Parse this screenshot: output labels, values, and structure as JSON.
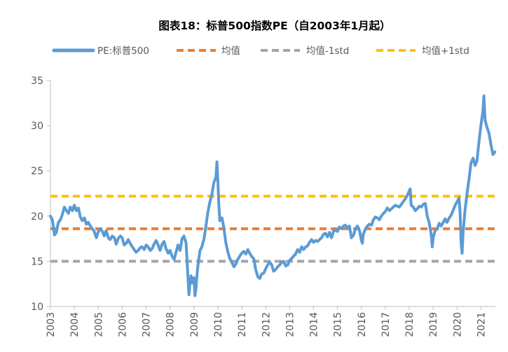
{
  "chart_data": {
    "type": "line",
    "title": "图表18：标普500指数PE（自2003年1月起）",
    "xlabel": "",
    "ylabel": "",
    "ylim": [
      10,
      35
    ],
    "xlim": [
      2003.0,
      2021.6
    ],
    "y_ticks": [
      10,
      15,
      20,
      25,
      30,
      35
    ],
    "x_ticks": [
      2003,
      2004,
      2005,
      2006,
      2007,
      2008,
      2009,
      2010,
      2011,
      2012,
      2013,
      2014,
      2015,
      2016,
      2017,
      2018,
      2019,
      2020,
      2021
    ],
    "grid": false,
    "legend_position": "top",
    "series": [
      {
        "name": "PE:标普500",
        "color": "#5b9bd5",
        "style": "solid",
        "points": [
          [
            2003.0,
            20.0
          ],
          [
            2003.08,
            19.6
          ],
          [
            2003.17,
            17.9
          ],
          [
            2003.25,
            18.2
          ],
          [
            2003.33,
            19.3
          ],
          [
            2003.42,
            19.6
          ],
          [
            2003.5,
            20.2
          ],
          [
            2003.58,
            21.0
          ],
          [
            2003.67,
            20.6
          ],
          [
            2003.75,
            20.3
          ],
          [
            2003.83,
            21.0
          ],
          [
            2003.92,
            20.6
          ],
          [
            2004.0,
            21.2
          ],
          [
            2004.08,
            20.6
          ],
          [
            2004.17,
            20.9
          ],
          [
            2004.25,
            19.9
          ],
          [
            2004.33,
            19.5
          ],
          [
            2004.42,
            19.8
          ],
          [
            2004.5,
            19.1
          ],
          [
            2004.58,
            19.3
          ],
          [
            2004.67,
            18.9
          ],
          [
            2004.75,
            18.6
          ],
          [
            2004.83,
            18.3
          ],
          [
            2004.92,
            17.6
          ],
          [
            2005.0,
            18.3
          ],
          [
            2005.08,
            18.6
          ],
          [
            2005.17,
            18.3
          ],
          [
            2005.25,
            17.8
          ],
          [
            2005.33,
            18.4
          ],
          [
            2005.42,
            17.6
          ],
          [
            2005.5,
            17.4
          ],
          [
            2005.58,
            17.8
          ],
          [
            2005.67,
            17.6
          ],
          [
            2005.75,
            16.9
          ],
          [
            2005.83,
            17.5
          ],
          [
            2005.92,
            17.8
          ],
          [
            2006.0,
            17.6
          ],
          [
            2006.08,
            16.8
          ],
          [
            2006.17,
            17.0
          ],
          [
            2006.25,
            17.4
          ],
          [
            2006.33,
            17.0
          ],
          [
            2006.42,
            16.6
          ],
          [
            2006.5,
            16.3
          ],
          [
            2006.58,
            16.0
          ],
          [
            2006.67,
            16.2
          ],
          [
            2006.75,
            16.5
          ],
          [
            2006.83,
            16.6
          ],
          [
            2006.92,
            16.3
          ],
          [
            2007.0,
            16.8
          ],
          [
            2007.08,
            16.6
          ],
          [
            2007.17,
            16.2
          ],
          [
            2007.25,
            16.4
          ],
          [
            2007.33,
            16.9
          ],
          [
            2007.42,
            17.3
          ],
          [
            2007.5,
            16.8
          ],
          [
            2007.58,
            16.2
          ],
          [
            2007.67,
            16.9
          ],
          [
            2007.75,
            17.2
          ],
          [
            2007.83,
            16.4
          ],
          [
            2007.92,
            15.9
          ],
          [
            2008.0,
            16.2
          ],
          [
            2008.08,
            15.6
          ],
          [
            2008.17,
            15.2
          ],
          [
            2008.25,
            16.0
          ],
          [
            2008.33,
            16.8
          ],
          [
            2008.42,
            16.2
          ],
          [
            2008.5,
            17.5
          ],
          [
            2008.58,
            17.8
          ],
          [
            2008.67,
            17.0
          ],
          [
            2008.75,
            13.2
          ],
          [
            2008.79,
            11.3
          ],
          [
            2008.83,
            12.5
          ],
          [
            2008.88,
            13.4
          ],
          [
            2008.92,
            12.6
          ],
          [
            2008.96,
            13.0
          ],
          [
            2009.0,
            13.2
          ],
          [
            2009.04,
            11.2
          ],
          [
            2009.08,
            11.9
          ],
          [
            2009.13,
            13.6
          ],
          [
            2009.17,
            14.6
          ],
          [
            2009.25,
            16.2
          ],
          [
            2009.33,
            16.6
          ],
          [
            2009.42,
            17.5
          ],
          [
            2009.5,
            18.9
          ],
          [
            2009.58,
            20.4
          ],
          [
            2009.67,
            21.6
          ],
          [
            2009.75,
            22.4
          ],
          [
            2009.83,
            23.7
          ],
          [
            2009.92,
            24.3
          ],
          [
            2009.96,
            26.0
          ],
          [
            2010.0,
            23.8
          ],
          [
            2010.04,
            21.3
          ],
          [
            2010.08,
            19.5
          ],
          [
            2010.17,
            19.8
          ],
          [
            2010.25,
            18.7
          ],
          [
            2010.33,
            17.1
          ],
          [
            2010.42,
            16.0
          ],
          [
            2010.5,
            15.3
          ],
          [
            2010.58,
            14.9
          ],
          [
            2010.67,
            14.4
          ],
          [
            2010.75,
            14.7
          ],
          [
            2010.83,
            15.2
          ],
          [
            2010.92,
            15.6
          ],
          [
            2011.0,
            15.9
          ],
          [
            2011.08,
            16.1
          ],
          [
            2011.17,
            15.8
          ],
          [
            2011.25,
            16.3
          ],
          [
            2011.33,
            15.9
          ],
          [
            2011.42,
            15.5
          ],
          [
            2011.5,
            15.3
          ],
          [
            2011.58,
            14.1
          ],
          [
            2011.67,
            13.3
          ],
          [
            2011.75,
            13.1
          ],
          [
            2011.83,
            13.6
          ],
          [
            2011.92,
            13.7
          ],
          [
            2012.0,
            14.2
          ],
          [
            2012.08,
            14.6
          ],
          [
            2012.17,
            14.9
          ],
          [
            2012.25,
            14.6
          ],
          [
            2012.33,
            13.9
          ],
          [
            2012.42,
            14.1
          ],
          [
            2012.5,
            14.4
          ],
          [
            2012.58,
            14.6
          ],
          [
            2012.67,
            14.9
          ],
          [
            2012.75,
            15.0
          ],
          [
            2012.83,
            14.5
          ],
          [
            2012.92,
            14.6
          ],
          [
            2013.0,
            15.1
          ],
          [
            2013.08,
            15.3
          ],
          [
            2013.17,
            15.6
          ],
          [
            2013.25,
            15.8
          ],
          [
            2013.33,
            16.3
          ],
          [
            2013.42,
            16.0
          ],
          [
            2013.5,
            16.6
          ],
          [
            2013.58,
            16.3
          ],
          [
            2013.67,
            16.6
          ],
          [
            2013.75,
            16.7
          ],
          [
            2013.83,
            17.1
          ],
          [
            2013.92,
            17.4
          ],
          [
            2014.0,
            17.1
          ],
          [
            2014.08,
            17.3
          ],
          [
            2014.17,
            17.2
          ],
          [
            2014.25,
            17.4
          ],
          [
            2014.33,
            17.6
          ],
          [
            2014.42,
            18.0
          ],
          [
            2014.5,
            18.1
          ],
          [
            2014.58,
            17.7
          ],
          [
            2014.67,
            18.2
          ],
          [
            2014.75,
            17.6
          ],
          [
            2014.83,
            18.3
          ],
          [
            2014.92,
            18.5
          ],
          [
            2015.0,
            18.3
          ],
          [
            2015.08,
            18.8
          ],
          [
            2015.17,
            18.6
          ],
          [
            2015.25,
            18.9
          ],
          [
            2015.33,
            19.0
          ],
          [
            2015.42,
            18.7
          ],
          [
            2015.5,
            18.9
          ],
          [
            2015.58,
            17.6
          ],
          [
            2015.67,
            17.9
          ],
          [
            2015.75,
            18.6
          ],
          [
            2015.83,
            18.9
          ],
          [
            2015.92,
            18.4
          ],
          [
            2016.0,
            17.3
          ],
          [
            2016.04,
            17.0
          ],
          [
            2016.08,
            18.0
          ],
          [
            2016.17,
            18.6
          ],
          [
            2016.25,
            18.9
          ],
          [
            2016.33,
            19.1
          ],
          [
            2016.42,
            19.0
          ],
          [
            2016.5,
            19.6
          ],
          [
            2016.58,
            19.9
          ],
          [
            2016.67,
            19.8
          ],
          [
            2016.75,
            19.6
          ],
          [
            2016.83,
            20.0
          ],
          [
            2016.92,
            20.3
          ],
          [
            2017.0,
            20.5
          ],
          [
            2017.08,
            20.9
          ],
          [
            2017.17,
            20.6
          ],
          [
            2017.25,
            20.8
          ],
          [
            2017.33,
            21.0
          ],
          [
            2017.42,
            21.2
          ],
          [
            2017.5,
            21.1
          ],
          [
            2017.58,
            21.0
          ],
          [
            2017.67,
            21.3
          ],
          [
            2017.75,
            21.6
          ],
          [
            2017.83,
            21.9
          ],
          [
            2017.92,
            22.3
          ],
          [
            2018.0,
            22.8
          ],
          [
            2018.04,
            23.0
          ],
          [
            2018.08,
            21.2
          ],
          [
            2018.17,
            21.0
          ],
          [
            2018.25,
            20.6
          ],
          [
            2018.33,
            20.8
          ],
          [
            2018.42,
            21.1
          ],
          [
            2018.5,
            21.0
          ],
          [
            2018.58,
            21.3
          ],
          [
            2018.67,
            21.4
          ],
          [
            2018.75,
            20.0
          ],
          [
            2018.83,
            19.3
          ],
          [
            2018.92,
            17.9
          ],
          [
            2018.96,
            16.6
          ],
          [
            2019.0,
            17.6
          ],
          [
            2019.08,
            18.4
          ],
          [
            2019.17,
            18.6
          ],
          [
            2019.25,
            19.2
          ],
          [
            2019.33,
            18.9
          ],
          [
            2019.42,
            19.3
          ],
          [
            2019.5,
            19.7
          ],
          [
            2019.58,
            19.3
          ],
          [
            2019.67,
            19.8
          ],
          [
            2019.75,
            20.1
          ],
          [
            2019.83,
            20.6
          ],
          [
            2019.92,
            21.2
          ],
          [
            2020.0,
            21.6
          ],
          [
            2020.08,
            22.0
          ],
          [
            2020.12,
            20.6
          ],
          [
            2020.17,
            16.9
          ],
          [
            2020.21,
            15.9
          ],
          [
            2020.25,
            18.2
          ],
          [
            2020.33,
            20.6
          ],
          [
            2020.42,
            22.6
          ],
          [
            2020.5,
            24.1
          ],
          [
            2020.58,
            25.9
          ],
          [
            2020.67,
            26.4
          ],
          [
            2020.75,
            25.6
          ],
          [
            2020.83,
            26.1
          ],
          [
            2020.92,
            28.4
          ],
          [
            2021.0,
            30.1
          ],
          [
            2021.08,
            31.6
          ],
          [
            2021.12,
            33.3
          ],
          [
            2021.17,
            30.6
          ],
          [
            2021.25,
            29.8
          ],
          [
            2021.33,
            29.2
          ],
          [
            2021.42,
            27.8
          ],
          [
            2021.5,
            26.8
          ],
          [
            2021.58,
            27.1
          ]
        ]
      },
      {
        "name": "均值",
        "color": "#ed7d31",
        "style": "dashed",
        "value": 18.6
      },
      {
        "name": "均值-1std",
        "color": "#a5a5a5",
        "style": "dashed",
        "value": 15.0
      },
      {
        "name": "均值+1std",
        "color": "#ffc000",
        "style": "dashed",
        "value": 22.2
      }
    ]
  }
}
